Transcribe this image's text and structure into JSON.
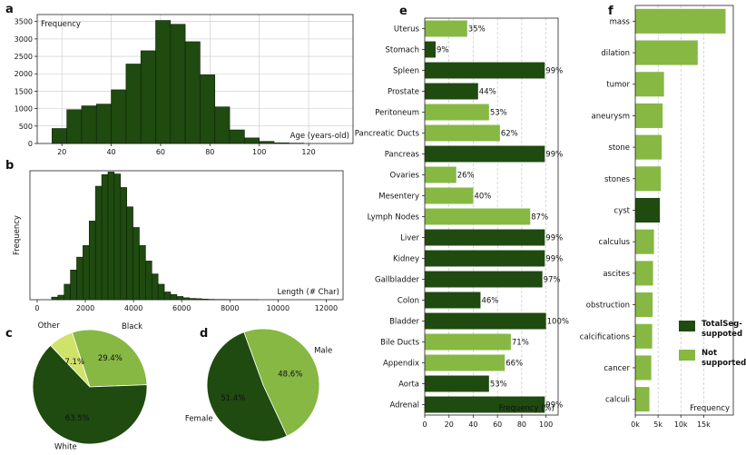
{
  "colors": {
    "dark": "#1f4a10",
    "light": "#86b843",
    "lighter": "#cfe36a",
    "edge": "#0e2208"
  },
  "chart_data": [
    {
      "panel": "a",
      "type": "bar",
      "ylabel": "Frequency",
      "xlabel": "Age (years-old)",
      "xlim": [
        10,
        138
      ],
      "ylim": [
        0,
        3700
      ],
      "xticks": [
        20,
        40,
        60,
        80,
        100,
        120
      ],
      "yticks": [
        0,
        500,
        1000,
        1500,
        2000,
        2500,
        3000,
        3500
      ],
      "bin_start": 16,
      "bin_width": 6,
      "values": [
        430,
        970,
        1080,
        1130,
        1540,
        2280,
        2660,
        3530,
        3420,
        2920,
        1970,
        1050,
        390,
        160,
        60,
        20,
        10
      ]
    },
    {
      "panel": "b",
      "type": "bar",
      "ylabel": "Frequency",
      "xlabel": "Length (# Char)",
      "xlim": [
        -300,
        12700
      ],
      "ylim": [
        0,
        1000
      ],
      "xticks": [
        0,
        2000,
        4000,
        6000,
        8000,
        10000,
        12000
      ],
      "bin_start": 600,
      "bin_width": 260,
      "values": [
        20,
        35,
        120,
        230,
        330,
        420,
        610,
        880,
        970,
        990,
        975,
        870,
        720,
        560,
        420,
        300,
        200,
        120,
        60,
        40,
        25,
        15,
        10,
        8,
        5,
        3,
        2,
        2,
        1,
        1,
        1,
        1,
        1
      ]
    },
    {
      "panel": "c",
      "type": "pie",
      "slices": [
        {
          "name": "Black",
          "value": 29.4,
          "label": "29.4%",
          "color": "light"
        },
        {
          "name": "White",
          "value": 63.5,
          "label": "63.5%",
          "color": "dark"
        },
        {
          "name": "Other",
          "value": 7.1,
          "label": "7.1%",
          "color": "lighter"
        }
      ]
    },
    {
      "panel": "d",
      "type": "pie",
      "slices": [
        {
          "name": "Male",
          "value": 48.6,
          "label": "48.6%",
          "color": "light"
        },
        {
          "name": "Female",
          "value": 51.4,
          "label": "51.4%",
          "color": "dark"
        }
      ]
    },
    {
      "panel": "e",
      "type": "bar",
      "orientation": "horizontal",
      "xlabel": "Frequency (%)",
      "xlim": [
        0,
        110
      ],
      "xticks": [
        0,
        20,
        40,
        60,
        80,
        100
      ],
      "categories": [
        "Uterus",
        "Stomach",
        "Spleen",
        "Prostate",
        "Peritoneum",
        "Pancreatic Ducts",
        "Pancreas",
        "Ovaries",
        "Mesentery",
        "Lymph Nodes",
        "Liver",
        "Kidney",
        "Gallbladder",
        "Colon",
        "Bladder",
        "Bile Ducts",
        "Appendix",
        "Aorta",
        "Adrenal"
      ],
      "values": [
        35,
        9,
        99,
        44,
        53,
        62,
        99,
        26,
        40,
        87,
        99,
        99,
        97,
        46,
        100,
        71,
        66,
        53,
        99
      ],
      "labels": [
        "35%",
        "9%",
        "99%",
        "44%",
        "53%",
        "62%",
        "99%",
        "26%",
        "40%",
        "87%",
        "99%",
        "99%",
        "97%",
        "46%",
        "100%",
        "71%",
        "66%",
        "53%",
        "99%"
      ],
      "supported": [
        false,
        true,
        true,
        true,
        false,
        false,
        true,
        false,
        false,
        false,
        true,
        true,
        true,
        true,
        true,
        false,
        false,
        true,
        true
      ]
    },
    {
      "panel": "f",
      "type": "bar",
      "orientation": "horizontal",
      "xlabel": "Frequency",
      "xlim": [
        0,
        21500
      ],
      "xticks": [
        0,
        5000,
        10000,
        15000
      ],
      "xticklabels": [
        "0k",
        "5k",
        "10k",
        "15k"
      ],
      "categories": [
        "mass",
        "dilation",
        "tumor",
        "aneurysm",
        "stone",
        "stones",
        "cyst",
        "calculus",
        "ascites",
        "obstruction",
        "calcifications",
        "cancer",
        "calculi"
      ],
      "values": [
        19800,
        13700,
        6300,
        6000,
        5800,
        5600,
        5400,
        4100,
        3900,
        3800,
        3700,
        3500,
        3100
      ],
      "supported": [
        false,
        false,
        false,
        false,
        false,
        false,
        true,
        false,
        false,
        false,
        false,
        false,
        false
      ],
      "legend": [
        {
          "name": "TotalSeg-\nsuppoted",
          "color": "dark"
        },
        {
          "name": "Not\nsupported",
          "color": "light"
        }
      ],
      "legend_position": "lower-right"
    }
  ]
}
